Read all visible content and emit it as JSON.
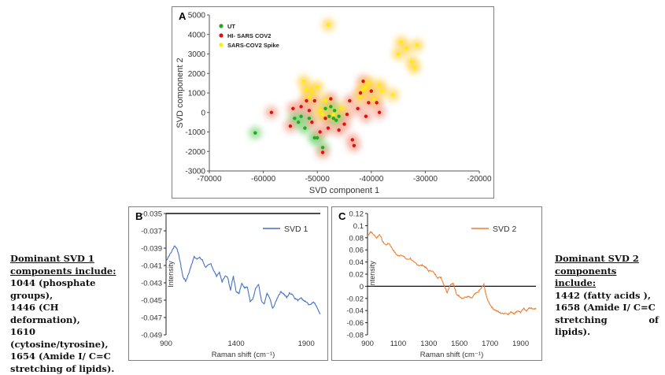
{
  "chart_data": [
    {
      "panel_label": "A",
      "type": "scatter",
      "xlabel": "SVD component 1",
      "ylabel": "SVD component 2",
      "xlim": [
        -70000,
        -20000
      ],
      "ylim": [
        -3000,
        5000
      ],
      "xticks": [
        "-70000",
        "-60000",
        "-50000",
        "-40000",
        "-30000",
        "-20000"
      ],
      "yticks": [
        "-3000",
        "-2000",
        "-1000",
        "0",
        "1000",
        "2000",
        "3000",
        "4000",
        "5000"
      ],
      "legend_position": "top-left",
      "series": [
        {
          "name": "UT",
          "color": "#22aa22",
          "points": [
            [
              -61500,
              -1050
            ],
            [
              -54200,
              -300
            ],
            [
              -53500,
              -500
            ],
            [
              -53000,
              -200
            ],
            [
              -52300,
              -800
            ],
            [
              -51500,
              -300
            ],
            [
              -50500,
              -1300
            ],
            [
              -50000,
              -1300
            ],
            [
              -49000,
              -1800
            ],
            [
              -48500,
              200
            ],
            [
              -47800,
              -200
            ],
            [
              -47500,
              300
            ],
            [
              -47000,
              -300
            ],
            [
              -46800,
              100
            ],
            [
              -46500,
              -400
            ],
            [
              -46000,
              -200
            ]
          ]
        },
        {
          "name": "HI- SARS COV2",
          "color": "#dd1111",
          "points": [
            [
              -58500,
              0
            ],
            [
              -55000,
              -700
            ],
            [
              -54500,
              200
            ],
            [
              -53000,
              300
            ],
            [
              -52000,
              600
            ],
            [
              -51500,
              100
            ],
            [
              -51000,
              -500
            ],
            [
              -50500,
              600
            ],
            [
              -49500,
              -1000
            ],
            [
              -49000,
              -2050
            ],
            [
              -48500,
              -300
            ],
            [
              -48000,
              -800
            ],
            [
              -47500,
              700
            ],
            [
              -46000,
              -900
            ],
            [
              -45000,
              -600
            ],
            [
              -44500,
              -100
            ],
            [
              -44000,
              600
            ],
            [
              -43500,
              -1400
            ],
            [
              -43200,
              -1700
            ],
            [
              -42500,
              200
            ],
            [
              -42000,
              1000
            ],
            [
              -41500,
              1600
            ],
            [
              -41000,
              -200
            ],
            [
              -40500,
              500
            ],
            [
              -40000,
              1100
            ],
            [
              -39000,
              500
            ],
            [
              -38500,
              0
            ]
          ]
        },
        {
          "name": "SARS-COV2 Spike",
          "color": "#ffee00",
          "points": [
            [
              -52500,
              1600
            ],
            [
              -52000,
              1200
            ],
            [
              -51500,
              800
            ],
            [
              -51000,
              1100
            ],
            [
              -50000,
              1300
            ],
            [
              -49500,
              100
            ],
            [
              -49000,
              -100
            ],
            [
              -48500,
              600
            ],
            [
              -47000,
              -100
            ],
            [
              -45500,
              200
            ],
            [
              -42000,
              800
            ],
            [
              -41500,
              1200
            ],
            [
              -41000,
              1300
            ],
            [
              -40500,
              1500
            ],
            [
              -39500,
              700
            ],
            [
              -38500,
              1400
            ],
            [
              -38000,
              1100
            ],
            [
              -36000,
              900
            ],
            [
              -35000,
              3000
            ],
            [
              -34500,
              3600
            ],
            [
              -33500,
              3300
            ],
            [
              -32500,
              2600
            ],
            [
              -32000,
              2300
            ],
            [
              -31500,
              3450
            ],
            [
              -48000,
              4500
            ]
          ]
        }
      ]
    },
    {
      "panel_label": "B",
      "type": "line",
      "xlabel": "Raman shift (cm⁻¹)",
      "ylabel": "Intensity",
      "xlim": [
        900,
        2000
      ],
      "ylim": [
        -0.049,
        -0.035
      ],
      "xticks": [
        "900",
        "1400",
        "1900"
      ],
      "yticks": [
        "-0.035",
        "-0.037",
        "-0.039",
        "-0.041",
        "-0.043",
        "-0.045",
        "-0.047",
        "-0.049"
      ],
      "legend_position": "top-right",
      "series": [
        {
          "name": "SVD 1",
          "color": "#4472c4",
          "x": [
            900,
            920,
            940,
            960,
            980,
            1000,
            1020,
            1040,
            1060,
            1080,
            1100,
            1120,
            1140,
            1160,
            1180,
            1200,
            1220,
            1240,
            1260,
            1280,
            1300,
            1320,
            1340,
            1360,
            1380,
            1400,
            1420,
            1440,
            1460,
            1480,
            1500,
            1520,
            1540,
            1560,
            1580,
            1600,
            1620,
            1640,
            1660,
            1680,
            1700,
            1720,
            1740,
            1760,
            1780,
            1800,
            1820,
            1840,
            1860,
            1880,
            1900,
            1920,
            1940,
            1960,
            1980,
            2000
          ],
          "y": [
            -0.0405,
            -0.0399,
            -0.0394,
            -0.0387,
            -0.0391,
            -0.0405,
            -0.0423,
            -0.0428,
            -0.042,
            -0.041,
            -0.04,
            -0.0402,
            -0.0401,
            -0.0404,
            -0.0412,
            -0.041,
            -0.0408,
            -0.0416,
            -0.0422,
            -0.0418,
            -0.0429,
            -0.0422,
            -0.0424,
            -0.0438,
            -0.0422,
            -0.044,
            -0.0442,
            -0.043,
            -0.0436,
            -0.0435,
            -0.0451,
            -0.0448,
            -0.0436,
            -0.0432,
            -0.0451,
            -0.0455,
            -0.0442,
            -0.0448,
            -0.046,
            -0.0453,
            -0.0445,
            -0.044,
            -0.0443,
            -0.0447,
            -0.0442,
            -0.0443,
            -0.0448,
            -0.045,
            -0.0447,
            -0.045,
            -0.0452,
            -0.0456,
            -0.0453,
            -0.0453,
            -0.046,
            -0.0466
          ]
        }
      ]
    },
    {
      "panel_label": "C",
      "type": "line",
      "xlabel": "Raman shift (cm⁻¹)",
      "ylabel": "Intensity",
      "xlim": [
        900,
        2000
      ],
      "ylim": [
        -0.08,
        0.12
      ],
      "xticks": [
        "900",
        "1100",
        "1300",
        "1500",
        "1700",
        "1900"
      ],
      "yticks": [
        "0.12",
        "0.1",
        "0.08",
        "0.06",
        "0.04",
        "0.02",
        "0",
        "-0.02",
        "-0.04",
        "-0.06",
        "-0.08"
      ],
      "legend_position": "top-right",
      "series": [
        {
          "name": "SVD 2",
          "color": "#ed7d31",
          "x": [
            900,
            920,
            940,
            960,
            980,
            1000,
            1020,
            1040,
            1060,
            1080,
            1100,
            1120,
            1140,
            1160,
            1180,
            1200,
            1220,
            1240,
            1260,
            1280,
            1300,
            1320,
            1340,
            1360,
            1380,
            1400,
            1420,
            1440,
            1460,
            1480,
            1500,
            1520,
            1540,
            1560,
            1580,
            1600,
            1620,
            1640,
            1660,
            1680,
            1700,
            1720,
            1740,
            1760,
            1780,
            1800,
            1820,
            1840,
            1860,
            1880,
            1900,
            1920,
            1940,
            1960,
            1980,
            2000
          ],
          "y": [
            0.083,
            0.09,
            0.085,
            0.08,
            0.086,
            0.073,
            0.068,
            0.071,
            0.063,
            0.055,
            0.05,
            0.052,
            0.048,
            0.044,
            0.046,
            0.04,
            0.037,
            0.034,
            0.035,
            0.031,
            0.025,
            0.026,
            0.02,
            0.014,
            0.015,
            0.002,
            -0.01,
            0.003,
            0.005,
            -0.013,
            -0.016,
            -0.02,
            -0.018,
            -0.017,
            -0.02,
            -0.013,
            -0.01,
            -0.004,
            0.003,
            -0.02,
            -0.03,
            -0.037,
            -0.04,
            -0.043,
            -0.045,
            -0.044,
            -0.046,
            -0.042,
            -0.045,
            -0.04,
            -0.043,
            -0.037,
            -0.04,
            -0.035,
            -0.038,
            -0.036
          ]
        }
      ]
    }
  ],
  "notes": {
    "left": {
      "heading": [
        "Dominant SVD 1",
        "components include:"
      ],
      "lines": [
        "1044 (phosphate groups),",
        "1446 (CH deformation),",
        "1610 (cytosine/tyrosine),",
        "1654 (Amide I/ C=C",
        "stretching of lipids)."
      ]
    },
    "right": {
      "heading": [
        "Dominant SVD 2",
        "components include:"
      ],
      "lines": [
        "1442 (fatty acids ),",
        "1658 (Amide I/ C=C",
        "stretching of lipids)."
      ]
    }
  }
}
